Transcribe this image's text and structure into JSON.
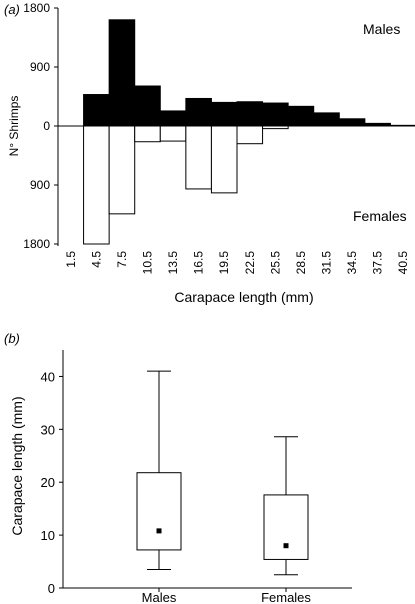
{
  "chart_data": [
    {
      "type": "bar",
      "panel_label": "(a)",
      "categories": [
        "1.5",
        "4.5",
        "7.5",
        "10.5",
        "13.5",
        "16.5",
        "19.5",
        "22.5",
        "25.5",
        "28.5",
        "31.5",
        "34.5",
        "37.5",
        "40.5"
      ],
      "series": [
        {
          "name": "Males",
          "color": "#000000",
          "values": [
            0,
            480,
            1620,
            610,
            230,
            420,
            360,
            370,
            350,
            300,
            200,
            110,
            40,
            10
          ]
        },
        {
          "name": "Females",
          "color": "#ffffff",
          "values": [
            0,
            1800,
            1340,
            240,
            230,
            960,
            1020,
            270,
            40,
            0,
            0,
            0,
            0,
            0
          ]
        }
      ],
      "xlabel": "Carapace length (mm)",
      "ylabel": "N° Shrimps",
      "yticks_top": [
        "1800",
        "900",
        "0"
      ],
      "yticks_bottom": [
        "900",
        "1800"
      ],
      "ylim": [
        -1800,
        1800
      ],
      "legend": "series names printed at right"
    },
    {
      "type": "box",
      "panel_label": "(b)",
      "categories": [
        "Males",
        "Females"
      ],
      "boxes": [
        {
          "name": "Males",
          "min": 3.5,
          "q1": 7.2,
          "median": 10.8,
          "q3": 21.8,
          "max": 41
        },
        {
          "name": "Females",
          "min": 2.5,
          "q1": 5.4,
          "median": 8.0,
          "q3": 17.6,
          "max": 28.6
        }
      ],
      "ylabel": "Carapace length (mm)",
      "yticks": [
        "0",
        "10",
        "20",
        "30",
        "40"
      ],
      "ylim": [
        0,
        45
      ]
    }
  ]
}
